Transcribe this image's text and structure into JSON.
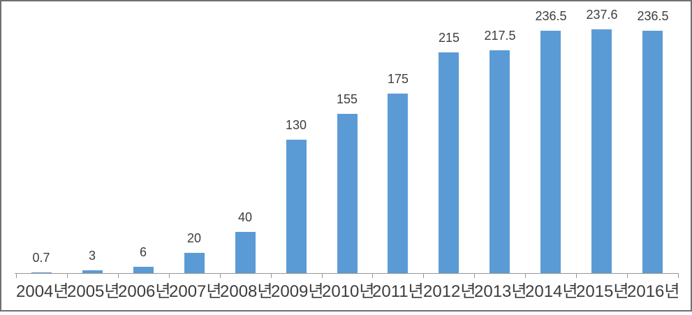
{
  "window": {
    "background": "#ffffff",
    "border_color": "#6f6f6f"
  },
  "chart_data": {
    "type": "bar",
    "title": "",
    "xlabel": "",
    "ylabel": "",
    "categories": [
      "2004년",
      "2005년",
      "2006년",
      "2007년",
      "2008년",
      "2009년",
      "2010년",
      "2011년",
      "2012년",
      "2013년",
      "2014년",
      "2015년",
      "2016년"
    ],
    "values": [
      0.7,
      3,
      6,
      20,
      40,
      130,
      155,
      175,
      215,
      217.5,
      236.5,
      237.6,
      236.5
    ],
    "value_labels": [
      "0.7",
      "3",
      "6",
      "20",
      "40",
      "130",
      "155",
      "175",
      "215",
      "217.5",
      "236.5",
      "237.6",
      "236.5"
    ],
    "ylim": [
      0,
      250
    ],
    "grid": false,
    "legend": "none",
    "y_axis_visible": false,
    "data_labels_position": "outside-end",
    "bar_color": "#5B9BD5",
    "axis_color": "#969696",
    "text_color": "#3d3d3d"
  }
}
